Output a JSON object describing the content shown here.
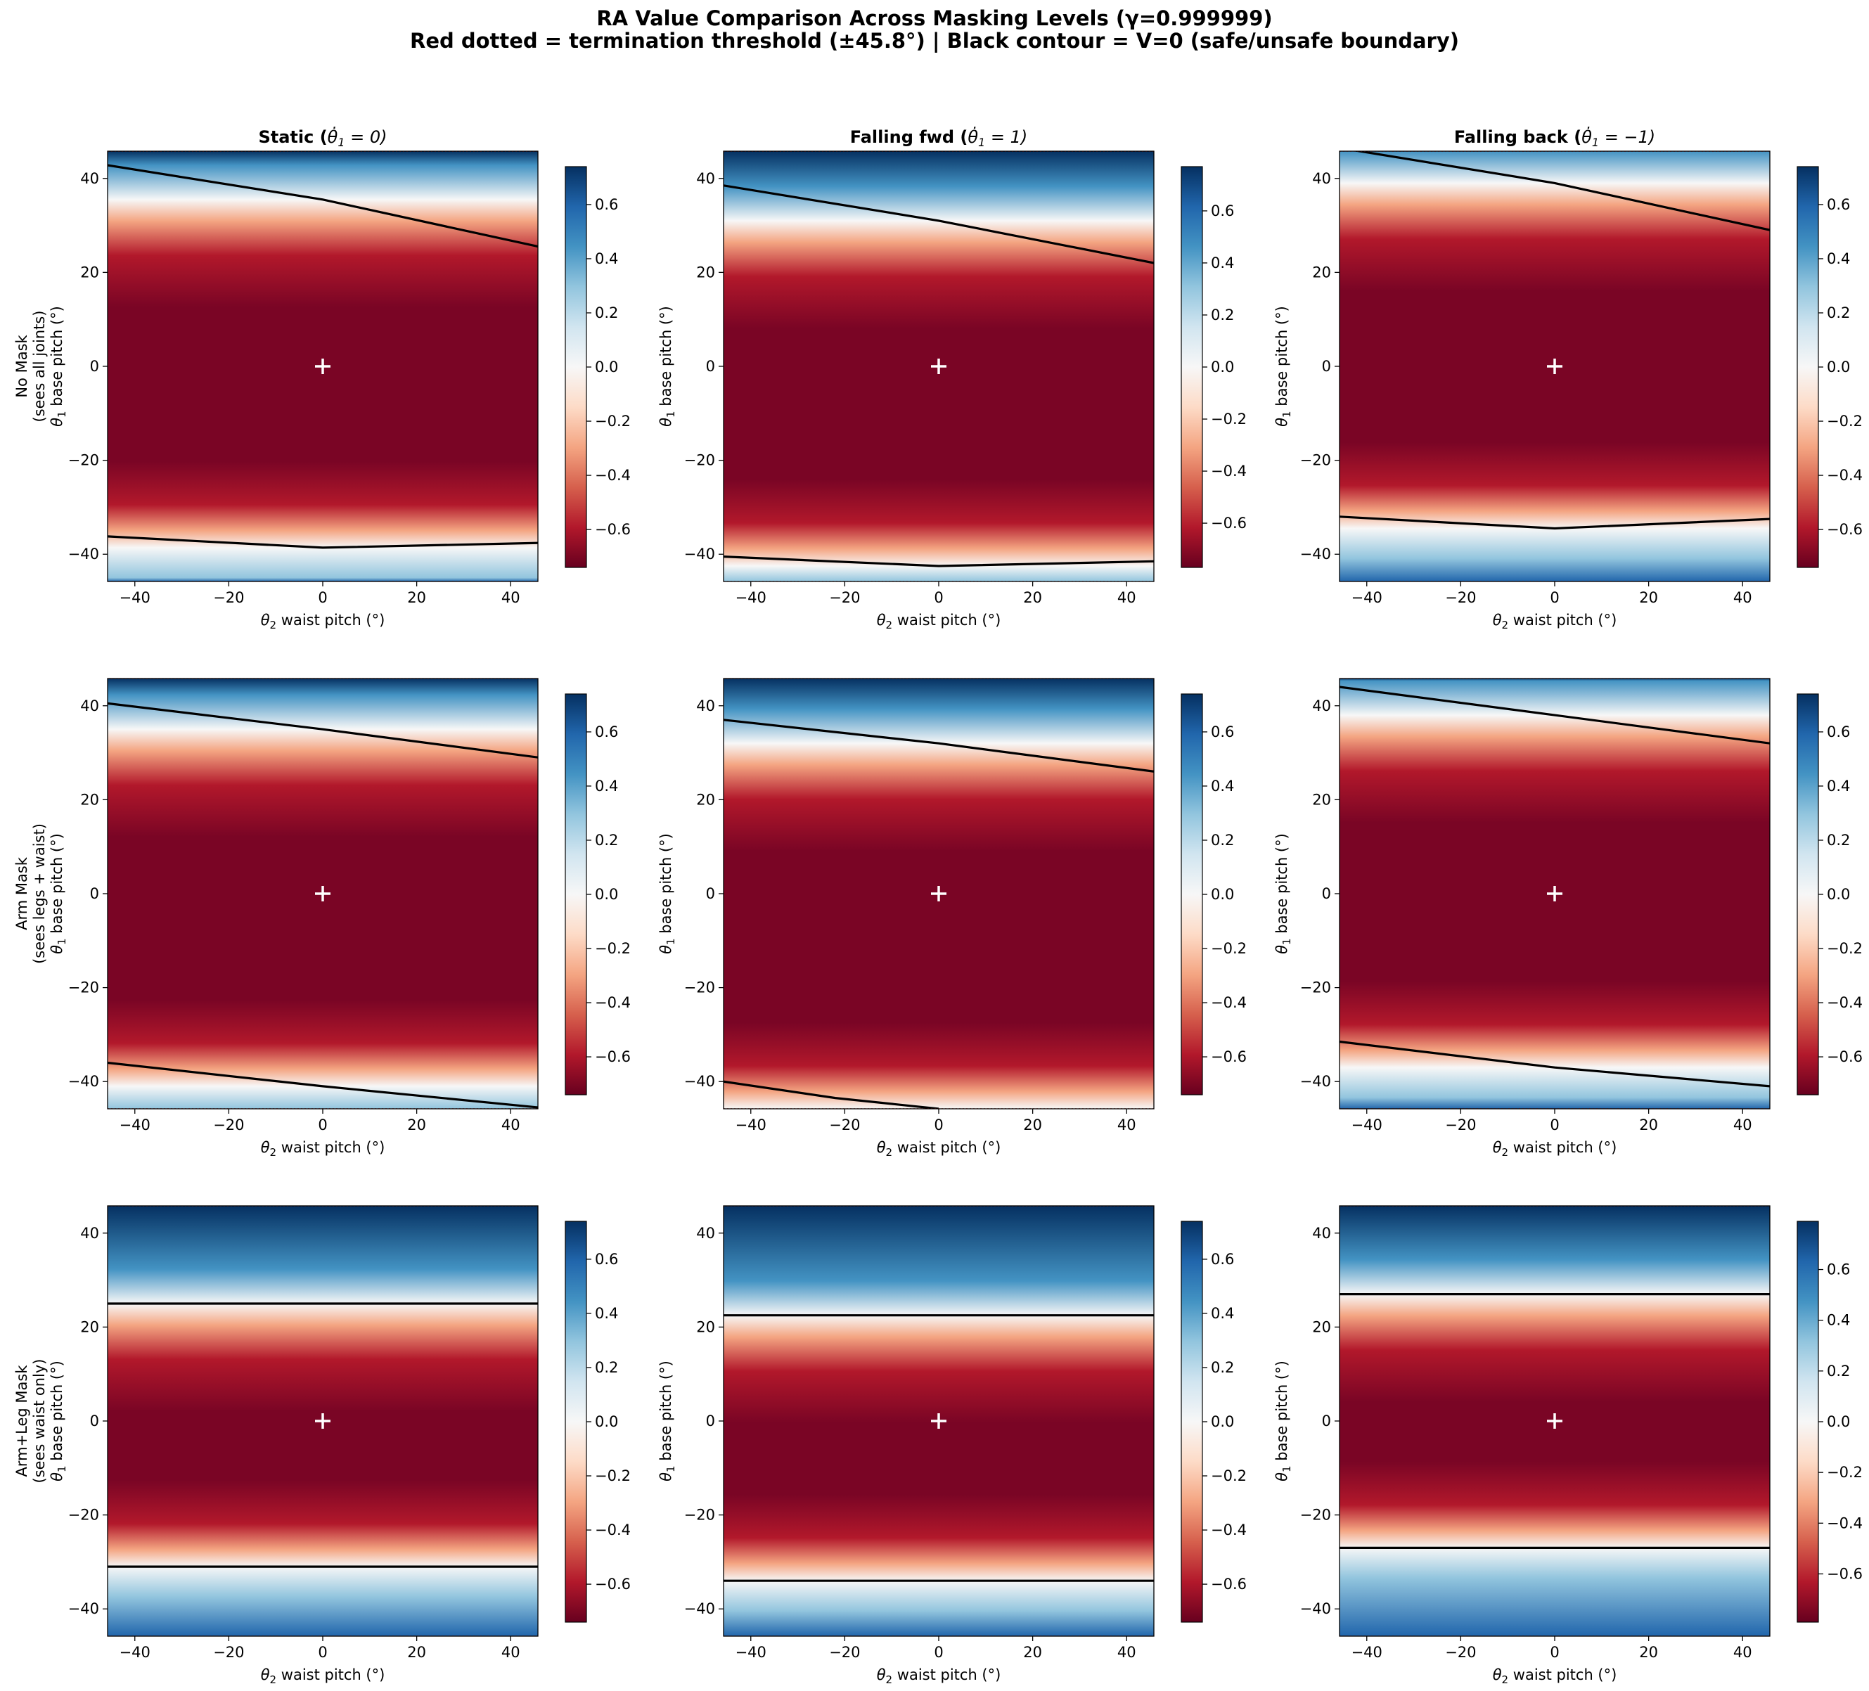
{
  "figure": {
    "title_line1": "RA Value Comparison Across Masking Levels (γ=0.999999)",
    "title_line2": "Red dotted = termination threshold (±45.8°) | Black contour = V=0 (safe/unsafe boundary)"
  },
  "columns": [
    {
      "title_prefix": "Static (",
      "title_math": "θ̇",
      "title_sub": "1",
      "title_rest": " = 0)",
      "velocity": 0
    },
    {
      "title_prefix": "Falling fwd (",
      "title_math": "θ̇",
      "title_sub": "1",
      "title_rest": " = 1)",
      "velocity": 1
    },
    {
      "title_prefix": "Falling back (",
      "title_math": "θ̇",
      "title_sub": "1",
      "title_rest": " = −1)",
      "velocity": -1
    }
  ],
  "rows": [
    {
      "mask_name": "No Mask",
      "mask_detail": "(sees all joints)"
    },
    {
      "mask_name": "Arm Mask",
      "mask_detail": "(sees legs + waist)"
    },
    {
      "mask_name": "Arm+Leg Mask",
      "mask_detail": "(sees waist only)"
    }
  ],
  "axes": {
    "xlabel_math": "θ",
    "xlabel_sub": "2",
    "xlabel_rest": " waist pitch (°)",
    "ylabel_math": "θ",
    "ylabel_sub": "1",
    "ylabel_rest": " base pitch (°)",
    "xlim": [
      -45.8,
      45.8
    ],
    "ylim": [
      -45.8,
      45.8
    ],
    "xticks": [
      -40,
      -20,
      0,
      20,
      40
    ],
    "yticks": [
      -40,
      -20,
      0,
      20,
      40
    ]
  },
  "colorbar": {
    "ticks": [
      "0.6",
      "0.4",
      "0.2",
      "0.0",
      "−0.2",
      "−0.4",
      "−0.6"
    ],
    "tick_values": [
      0.6,
      0.4,
      0.2,
      0.0,
      -0.2,
      -0.4,
      -0.6
    ],
    "colormap": "RdBu"
  },
  "colors": {
    "contour": "#000000",
    "threshold": "#d62728",
    "marker": "#ffffff"
  },
  "chart_data": [
    {
      "type": "heatmap",
      "mask": "No Mask",
      "title": "Static (θ̇1 = 0)",
      "vmin": -0.74,
      "vmax": 0.74,
      "v0_contour_upper": [
        [
          -45.8,
          42.8
        ],
        [
          0,
          35.5
        ],
        [
          45.8,
          25.5
        ]
      ],
      "v0_contour_lower": [
        [
          -45.8,
          -36.2
        ],
        [
          0,
          -38.6
        ],
        [
          45.8,
          -37.6
        ]
      ],
      "threshold": 45.8,
      "marker": [
        0,
        0
      ]
    },
    {
      "type": "heatmap",
      "mask": "No Mask",
      "title": "Falling fwd (θ̇1 = 1)",
      "vmin": -0.77,
      "vmax": 0.77,
      "v0_contour_upper": [
        [
          -45.8,
          38.5
        ],
        [
          0,
          31.0
        ],
        [
          45.8,
          22.0
        ]
      ],
      "v0_contour_lower": [
        [
          -45.8,
          -40.5
        ],
        [
          0,
          -42.5
        ],
        [
          45.8,
          -41.5
        ]
      ],
      "threshold": 45.8,
      "marker": [
        0,
        0
      ]
    },
    {
      "type": "heatmap",
      "mask": "No Mask",
      "title": "Falling back (θ̇1 = −1)",
      "vmin": -0.74,
      "vmax": 0.74,
      "v0_contour_upper": [
        [
          -45.8,
          46.5
        ],
        [
          0,
          39.0
        ],
        [
          45.8,
          29.0
        ]
      ],
      "v0_contour_lower": [
        [
          -45.8,
          -32.0
        ],
        [
          0,
          -34.5
        ],
        [
          45.8,
          -32.5
        ]
      ],
      "threshold": 45.8,
      "marker": [
        0,
        0
      ]
    },
    {
      "type": "heatmap",
      "mask": "Arm Mask",
      "title": "Static (θ̇1 = 0)",
      "vmin": -0.74,
      "vmax": 0.74,
      "v0_contour_upper": [
        [
          -45.8,
          40.5
        ],
        [
          0,
          35.0
        ],
        [
          45.8,
          29.0
        ]
      ],
      "v0_contour_lower": [
        [
          -45.8,
          -36.0
        ],
        [
          0,
          -41.0
        ],
        [
          45.8,
          -45.5
        ]
      ],
      "threshold": 45.8,
      "marker": [
        0,
        0
      ]
    },
    {
      "type": "heatmap",
      "mask": "Arm Mask",
      "title": "Falling fwd (θ̇1 = 1)",
      "vmin": -0.74,
      "vmax": 0.74,
      "v0_contour_upper": [
        [
          -45.8,
          37.0
        ],
        [
          0,
          32.0
        ],
        [
          45.8,
          26.0
        ]
      ],
      "v0_contour_lower": [
        [
          -45.8,
          -40.0
        ],
        [
          -22,
          -43.5
        ],
        [
          0,
          -45.8
        ]
      ],
      "threshold": 45.8,
      "marker": [
        0,
        0
      ]
    },
    {
      "type": "heatmap",
      "mask": "Arm Mask",
      "title": "Falling back (θ̇1 = −1)",
      "vmin": -0.74,
      "vmax": 0.74,
      "v0_contour_upper": [
        [
          -45.8,
          44.0
        ],
        [
          0,
          38.0
        ],
        [
          45.8,
          32.0
        ]
      ],
      "v0_contour_lower": [
        [
          -45.8,
          -31.5
        ],
        [
          0,
          -37.0
        ],
        [
          45.8,
          -41.0
        ]
      ],
      "threshold": 45.8,
      "marker": [
        0,
        0
      ]
    },
    {
      "type": "heatmap",
      "mask": "Arm+Leg Mask",
      "title": "Static (θ̇1 = 0)",
      "vmin": -0.74,
      "vmax": 0.74,
      "v0_contour_upper": [
        [
          -45.8,
          25.0
        ],
        [
          45.8,
          25.0
        ]
      ],
      "v0_contour_lower": [
        [
          -45.8,
          -31.0
        ],
        [
          45.8,
          -31.0
        ]
      ],
      "threshold": 45.8,
      "marker": [
        0,
        0
      ]
    },
    {
      "type": "heatmap",
      "mask": "Arm+Leg Mask",
      "title": "Falling fwd (θ̇1 = 1)",
      "vmin": -0.74,
      "vmax": 0.74,
      "v0_contour_upper": [
        [
          -45.8,
          22.5
        ],
        [
          45.8,
          22.5
        ]
      ],
      "v0_contour_lower": [
        [
          -45.8,
          -34.0
        ],
        [
          45.8,
          -34.0
        ]
      ],
      "threshold": 45.8,
      "marker": [
        0,
        0
      ]
    },
    {
      "type": "heatmap",
      "mask": "Arm+Leg Mask",
      "title": "Falling back (θ̇1 = −1)",
      "vmin": -0.79,
      "vmax": 0.79,
      "v0_contour_upper": [
        [
          -45.8,
          27.0
        ],
        [
          45.8,
          27.0
        ]
      ],
      "v0_contour_lower": [
        [
          -45.8,
          -27.0
        ],
        [
          45.8,
          -27.0
        ]
      ],
      "threshold": 45.8,
      "marker": [
        0,
        0
      ]
    }
  ]
}
